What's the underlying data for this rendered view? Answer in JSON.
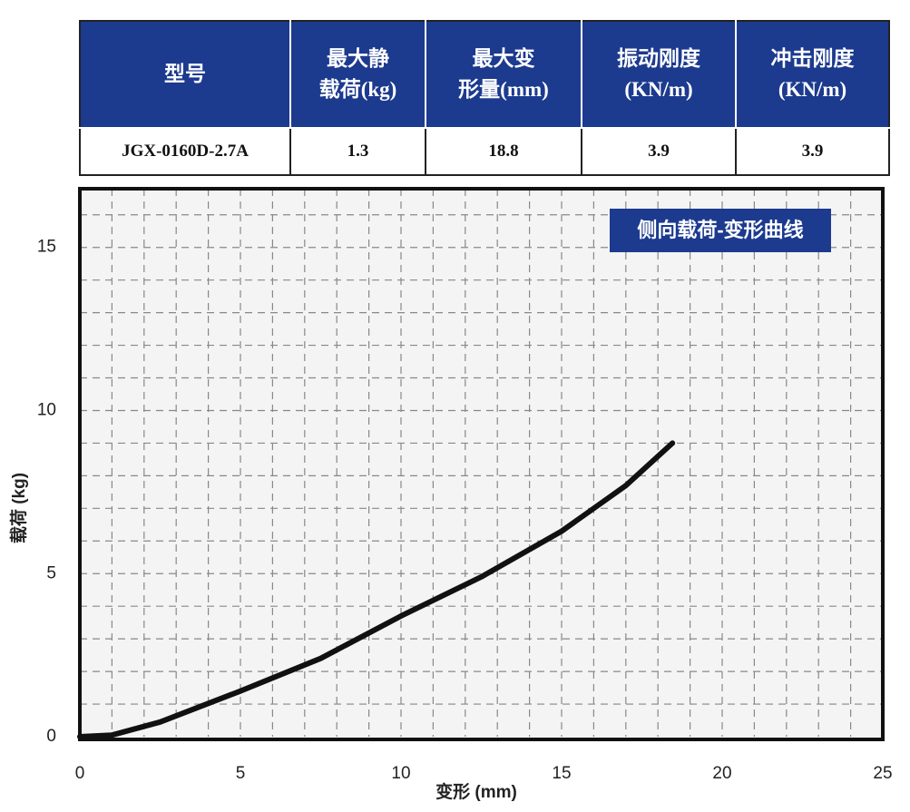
{
  "table": {
    "header": [
      [
        "型号"
      ],
      [
        "最大静",
        "载荷(kg)"
      ],
      [
        "最大变",
        "形量(mm)"
      ],
      [
        "振动刚度",
        "(KN/m)"
      ],
      [
        "冲击刚度",
        "(KN/m)"
      ]
    ],
    "rows": [
      [
        "JGX-0160D-2.7A",
        "1.3",
        "18.8",
        "3.9",
        "3.9"
      ]
    ]
  },
  "chart_data": {
    "type": "line",
    "annotation": "侧向载荷-变形曲线",
    "x_label": "变形 (mm)",
    "y_label": "载荷 (kg)",
    "x": [
      0,
      1,
      2.5,
      5,
      7.5,
      10,
      12.5,
      15,
      17,
      18.45
    ],
    "series": [
      {
        "color": "#111111",
        "values": [
          0,
          0.05,
          0.45,
          1.4,
          2.4,
          3.7,
          4.9,
          6.3,
          7.7,
          9.0
        ]
      }
    ],
    "xlim": [
      0,
      25
    ],
    "ylim": [
      0,
      16.8
    ],
    "xticks": [
      0,
      5,
      10,
      15,
      20,
      25
    ],
    "yticks": [
      0,
      5,
      10,
      15
    ],
    "grid_x": [
      1,
      2,
      3,
      4,
      5,
      6,
      7,
      8,
      9,
      10,
      11,
      12,
      13,
      14,
      15,
      16,
      17,
      18,
      19,
      20,
      21,
      22,
      23,
      24
    ],
    "grid_y": [
      1,
      2,
      3,
      4,
      5,
      6,
      7,
      8,
      9,
      10,
      11,
      12,
      13,
      14,
      15,
      16
    ],
    "grid": true
  }
}
